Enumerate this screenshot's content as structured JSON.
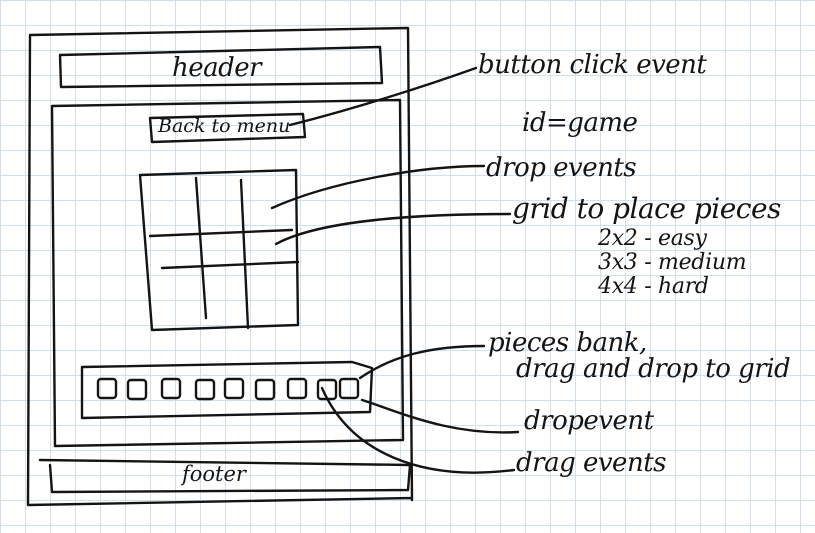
{
  "sketch": {
    "header_label": "header",
    "back_button_label": "Back to menu",
    "footer_label": "footer",
    "pieces": [
      1,
      2,
      3,
      4,
      5,
      6,
      7,
      8,
      9
    ]
  },
  "annotations": {
    "button_click": "button click event",
    "id_note": "id=game",
    "drop_events_grid": "drop events",
    "grid_title": "grid to place pieces",
    "grid_levels": [
      "2x2 - easy",
      "3x3 - medium",
      "4x4 - hard"
    ],
    "pieces_bank_line1": "pieces bank,",
    "pieces_bank_line2": "drag and drop to grid",
    "drop_event_bank": "dropevent",
    "drag_events": "drag events"
  },
  "colors": {
    "ink": "#141414",
    "grid_paper": "#cfe0ef"
  }
}
